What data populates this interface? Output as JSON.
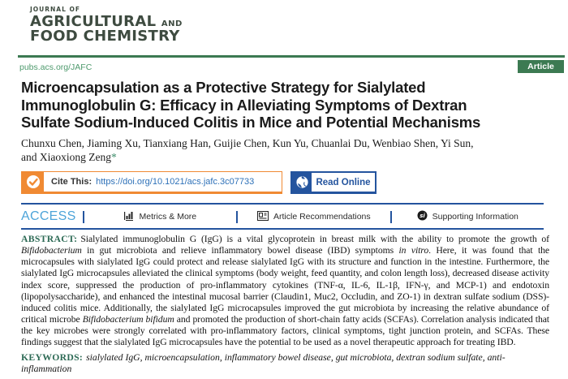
{
  "journal": {
    "kicker": "JOURNAL OF",
    "name_line1_main": "AGRICULTURAL",
    "name_line1_suffix": "AND",
    "name_line2": "FOOD CHEMISTRY"
  },
  "masthead": {
    "site_url": "pubs.acs.org/JAFC",
    "article_type": "Article"
  },
  "article": {
    "title_lines": [
      "Microencapsulation as a Protective Strategy for Sialylated",
      "Immunoglobulin G: Efficacy in Alleviating Symptoms of Dextran",
      "Sulfate Sodium-Induced Colitis in Mice and Potential Mechanisms"
    ],
    "authors_line1": "Chunxu Chen, Jiaming Xu, Tianxiang Han, Guijie Chen, Kun Yu, Chuanlai Du, Wenbiao Shen, Yi Sun,",
    "authors_line2": "and Xiaoxiong Zeng",
    "corresponding_mark": "*"
  },
  "cite_bar": {
    "label": "Cite This:",
    "doi": "https://doi.org/10.1021/acs.jafc.3c07733",
    "read_online": "Read Online"
  },
  "access_bar": {
    "access": "ACCESS",
    "items": [
      {
        "label": "Metrics & More",
        "icon": "metrics-chart-icon"
      },
      {
        "label": "Article Recommendations",
        "icon": "article-recommendations-icon"
      },
      {
        "label": "Supporting Information",
        "icon": "supporting-information-icon"
      }
    ]
  },
  "abstract": {
    "label": "ABSTRACT:",
    "segments": [
      {
        "t": "Sialylated immunoglobulin G (IgG) is a vital glycoprotein in breast milk with the ability to promote the growth of ",
        "i": false
      },
      {
        "t": "Bifidobacterium",
        "i": true
      },
      {
        "t": " in gut microbiota and relieve inflammatory bowel disease (IBD) symptoms ",
        "i": false
      },
      {
        "t": "in vitro",
        "i": true
      },
      {
        "t": ". Here, it was found that the microcapsules with sialylated IgG could protect and release sialylated IgG with its structure and function in the intestine. Furthermore, the sialylated IgG microcapsules alleviated the clinical symptoms (body weight, feed quantity, and colon length loss), decreased disease activity index score, suppressed the production of pro-inflammatory cytokines (TNF-α, IL-6, IL-1β, IFN-γ, and MCP-1) and endotoxin (lipopolysaccharide), and enhanced the intestinal mucosal barrier (Claudin1, Muc2, Occludin, and ZO-1) in dextran sulfate sodium (DSS)-induced colitis mice. Additionally, the sialylated IgG microcapsules improved the gut microbiota by increasing the relative abundance of critical microbe ",
        "i": false
      },
      {
        "t": "Bifidobacterium bifidum",
        "i": true
      },
      {
        "t": " and promoted the production of short-chain fatty acids (SCFAs). Correlation analysis indicated that the key microbes were strongly correlated with pro-inflammatory factors, clinical symptoms, tight junction protein, and SCFAs. These findings suggest that the sialylated IgG microcapsules have the potential to be used as a novel therapeutic approach for treating IBD.",
        "i": false
      }
    ]
  },
  "keywords": {
    "label": "KEYWORDS:",
    "text": "sialylated IgG, microencapsulation, inflammatory bowel disease, gut microbiota, dextran sodium sulfate, anti-inflammation"
  },
  "colors": {
    "logo_green": "#3e4b40",
    "brand_green": "#3c7a52",
    "link_green": "#4e9a6d",
    "deep_blue": "#24549e",
    "access_blue": "#4da4d9",
    "doi_blue": "#2e71b8",
    "cite_orange": "#f08a33",
    "abstract_label_green": "#2d6a55"
  }
}
